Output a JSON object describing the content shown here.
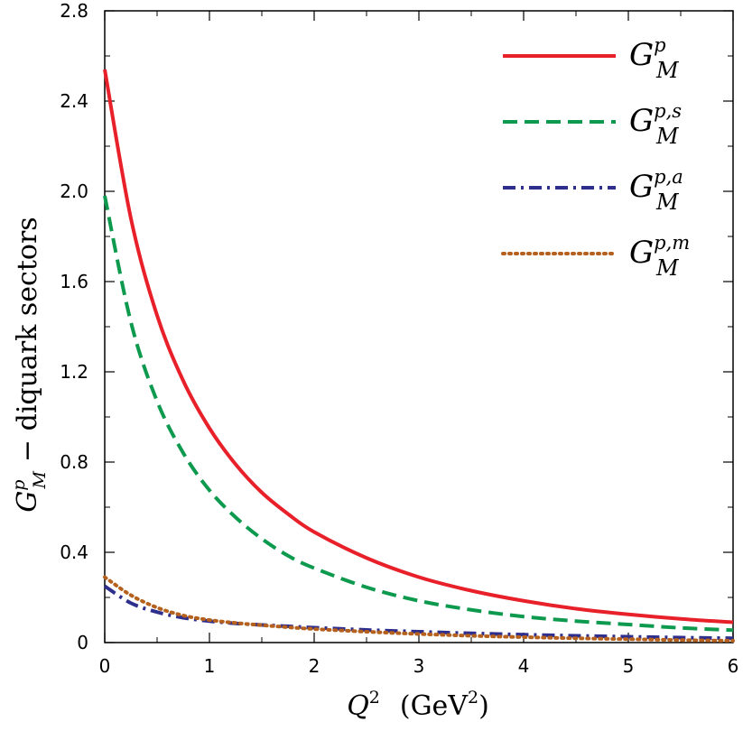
{
  "chart_data": {
    "type": "line",
    "xlabel": "Q^2 (GeV^2)",
    "xlabel_main": "Q",
    "xlabel_main_sup": "2",
    "xlabel_unit": "(GeV",
    "xlabel_unit_sup": "2",
    "xlabel_unit_close": ")",
    "ylabel": "G_M^p − diquark sectors",
    "ylabel_main": "G",
    "ylabel_sup": "p",
    "ylabel_sub": "M",
    "ylabel_rest": "− diquark sectors",
    "xlim": [
      0,
      6
    ],
    "ylim": [
      0,
      2.8
    ],
    "xticks": [
      "0",
      "1",
      "2",
      "3",
      "4",
      "5",
      "6"
    ],
    "yticks": [
      "0",
      "0.4",
      "0.8",
      "1.2",
      "1.6",
      "2.0",
      "2.4",
      "2.8"
    ],
    "x": [
      0,
      0.25,
      0.5,
      0.75,
      1.0,
      1.25,
      1.5,
      1.75,
      2.0,
      2.5,
      3.0,
      3.5,
      4.0,
      4.5,
      5.0,
      5.5,
      6.0
    ],
    "series": [
      {
        "name": "G_M^p",
        "symbol": "G",
        "sup": "p",
        "sub": "M",
        "color": "#e8202a",
        "dash": "solid",
        "values": [
          2.54,
          1.88,
          1.45,
          1.16,
          0.95,
          0.79,
          0.665,
          0.57,
          0.49,
          0.375,
          0.29,
          0.23,
          0.185,
          0.15,
          0.125,
          0.105,
          0.09
        ]
      },
      {
        "name": "G_M^{p,s}",
        "symbol": "G",
        "sup": "p,s",
        "sub": "M",
        "color": "#0e9a4e",
        "dash": "dashed",
        "values": [
          1.98,
          1.42,
          1.07,
          0.84,
          0.675,
          0.555,
          0.46,
          0.385,
          0.33,
          0.245,
          0.185,
          0.145,
          0.115,
          0.095,
          0.08,
          0.065,
          0.055
        ]
      },
      {
        "name": "G_M^{p,a}",
        "symbol": "G",
        "sup": "p,a",
        "sub": "M",
        "color": "#2e2e8c",
        "dash": "dashdot",
        "values": [
          0.25,
          0.175,
          0.135,
          0.11,
          0.095,
          0.085,
          0.078,
          0.072,
          0.066,
          0.056,
          0.048,
          0.041,
          0.035,
          0.03,
          0.026,
          0.022,
          0.019
        ]
      },
      {
        "name": "G_M^{p,m}",
        "symbol": "G",
        "sup": "p,m",
        "sub": "M",
        "color": "#b5601c",
        "dash": "dotted",
        "values": [
          0.29,
          0.21,
          0.155,
          0.12,
          0.1,
          0.087,
          0.077,
          0.068,
          0.06,
          0.048,
          0.038,
          0.03,
          0.024,
          0.019,
          0.015,
          0.011,
          0.008
        ]
      }
    ],
    "legend_position": "top-right",
    "grid": false
  }
}
